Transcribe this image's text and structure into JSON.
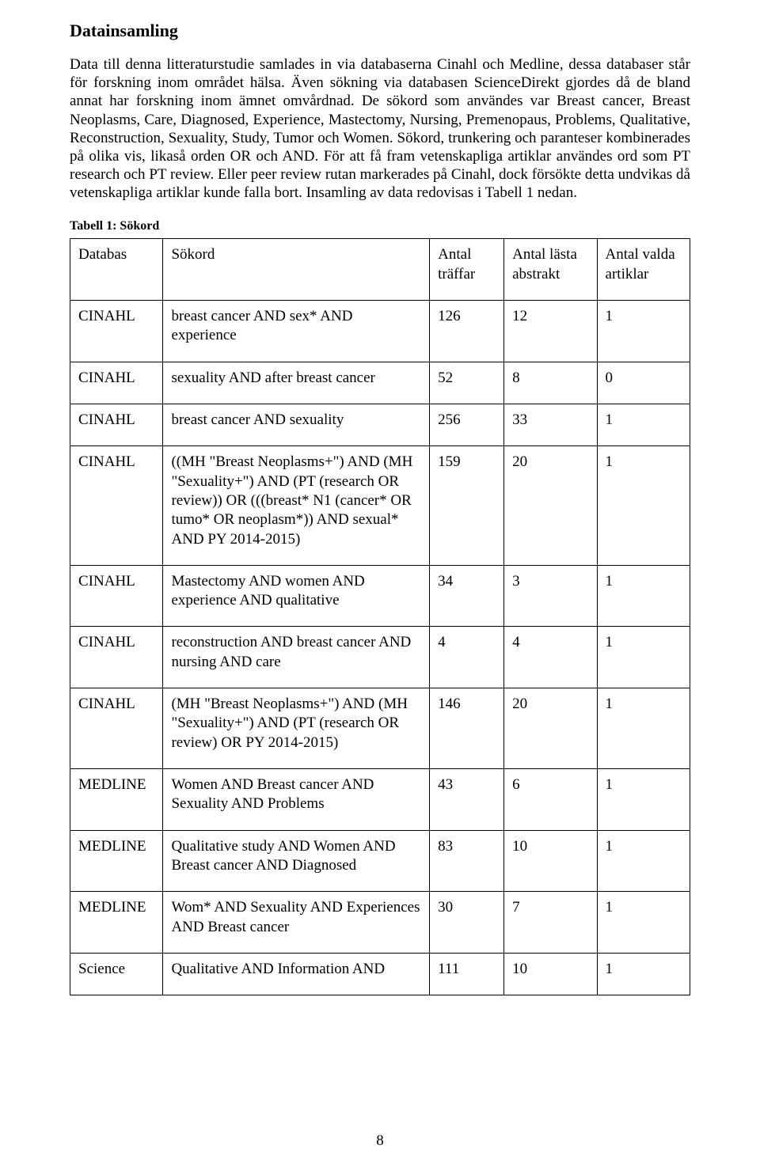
{
  "section_title": "Datainsamling",
  "body_text": "Data till denna litteraturstudie samlades in via databaserna Cinahl och Medline, dessa databaser står för forskning inom området hälsa. Även sökning via databasen ScienceDirekt gjordes då de bland annat har forskning inom ämnet omvårdnad. De sökord som användes var Breast cancer, Breast Neoplasms, Care, Diagnosed, Experience, Mastectomy, Nursing, Premenopaus, Problems, Qualitative, Reconstruction, Sexuality, Study, Tumor och Women. Sökord, trunkering och paranteser kombinerades på olika vis, likaså orden OR och AND. För att få fram vetenskapliga artiklar användes ord som PT research och PT review. Eller peer review rutan markerades på Cinahl, dock försökte detta undvikas då vetenskapliga artiklar kunde falla bort. Insamling av data redovisas i Tabell 1 nedan.",
  "table_caption": "Tabell 1: Sökord",
  "table": {
    "columns": {
      "db": "Databas",
      "sokord": "Sökord",
      "traffar": "Antal träffar",
      "lasta": "Antal lästa abstrakt",
      "valda": "Antal valda artiklar"
    },
    "rows": [
      {
        "db": "CINAHL",
        "sokord": "breast cancer AND sex* AND experience",
        "traffar": "126",
        "lasta": "12",
        "valda": "1"
      },
      {
        "db": "CINAHL",
        "sokord": "sexuality AND after breast cancer",
        "traffar": "52",
        "lasta": "8",
        "valda": "0"
      },
      {
        "db": "CINAHL",
        "sokord": "breast cancer AND sexuality",
        "traffar": "256",
        "lasta": "33",
        "valda": "1"
      },
      {
        "db": "CINAHL",
        "sokord": "((MH \"Breast Neoplasms+\") AND (MH \"Sexuality+\") AND (PT (research OR review)) OR (((breast* N1 (cancer* OR tumo* OR neoplasm*)) AND sexual* AND PY 2014-2015)",
        "traffar": "159",
        "lasta": "20",
        "valda": "1"
      },
      {
        "db": "CINAHL",
        "sokord": "Mastectomy AND women AND  experience AND qualitative",
        "traffar": "34",
        "lasta": "3",
        "valda": "1"
      },
      {
        "db": "CINAHL",
        "sokord": "reconstruction AND breast cancer AND nursing AND care",
        "traffar": "4",
        "lasta": "4",
        "valda": "1"
      },
      {
        "db": "CINAHL",
        "sokord": "(MH \"Breast Neoplasms+\") AND (MH \"Sexuality+\") AND (PT (research OR review) OR PY 2014-2015)",
        "traffar": "146",
        "lasta": "20",
        "valda": "1"
      },
      {
        "db": "MEDLINE",
        "sokord": "Women AND  Breast cancer AND Sexuality AND Problems",
        "traffar": "43",
        "lasta": "6",
        "valda": "1"
      },
      {
        "db": "MEDLINE",
        "sokord": "Qualitative study AND Women AND Breast cancer AND Diagnosed",
        "traffar": "83",
        "lasta": "10",
        "valda": "1"
      },
      {
        "db": "MEDLINE",
        "sokord": "Wom* AND Sexuality AND Experiences AND Breast cancer",
        "traffar": "30",
        "lasta": "7",
        "valda": "1"
      },
      {
        "db": "Science",
        "sokord": "Qualitative  AND Information AND",
        "traffar": "111",
        "lasta": "10",
        "valda": "1"
      }
    ]
  },
  "page_number": "8",
  "colors": {
    "text": "#000000",
    "background": "#ffffff",
    "border": "#000000"
  },
  "typography": {
    "font_family": "Times New Roman",
    "title_fontsize_pt": 16,
    "body_fontsize_pt": 14,
    "caption_fontsize_pt": 12
  }
}
